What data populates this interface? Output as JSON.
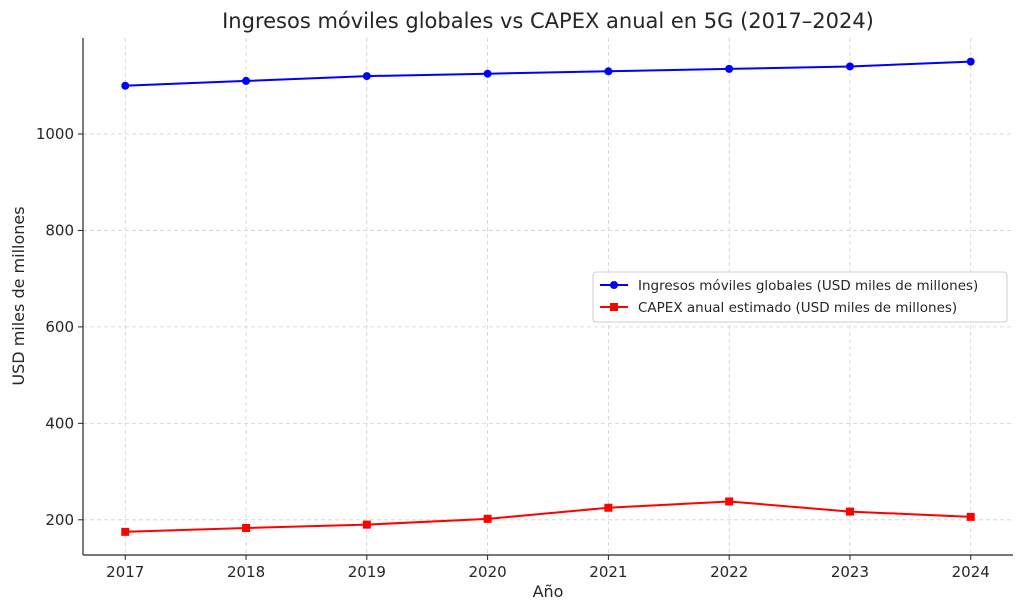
{
  "chart_data": {
    "type": "line",
    "title": "Ingresos móviles globales vs CAPEX anual en 5G (2017–2024)",
    "xlabel": "Año",
    "ylabel": "USD miles de millones",
    "x": [
      2017,
      2018,
      2019,
      2020,
      2021,
      2022,
      2023,
      2024
    ],
    "xticks": [
      "2017",
      "2018",
      "2019",
      "2020",
      "2021",
      "2022",
      "2023",
      "2024"
    ],
    "yticks": [
      200,
      400,
      600,
      800,
      1000
    ],
    "xlim": [
      2016.65,
      2024.35
    ],
    "ylim": [
      127,
      1199
    ],
    "grid": true,
    "legend_position": "center-right",
    "series": [
      {
        "name": "Ingresos móviles globales (USD miles de millones)",
        "color": "#0000ff",
        "marker": "circle",
        "values": [
          1100,
          1110,
          1120,
          1125,
          1130,
          1135,
          1140,
          1150
        ]
      },
      {
        "name": "CAPEX anual estimado (USD miles de millones)",
        "color": "#ff0000",
        "marker": "square",
        "values": [
          175,
          183,
          190,
          202,
          225,
          238,
          217,
          206
        ]
      }
    ]
  }
}
